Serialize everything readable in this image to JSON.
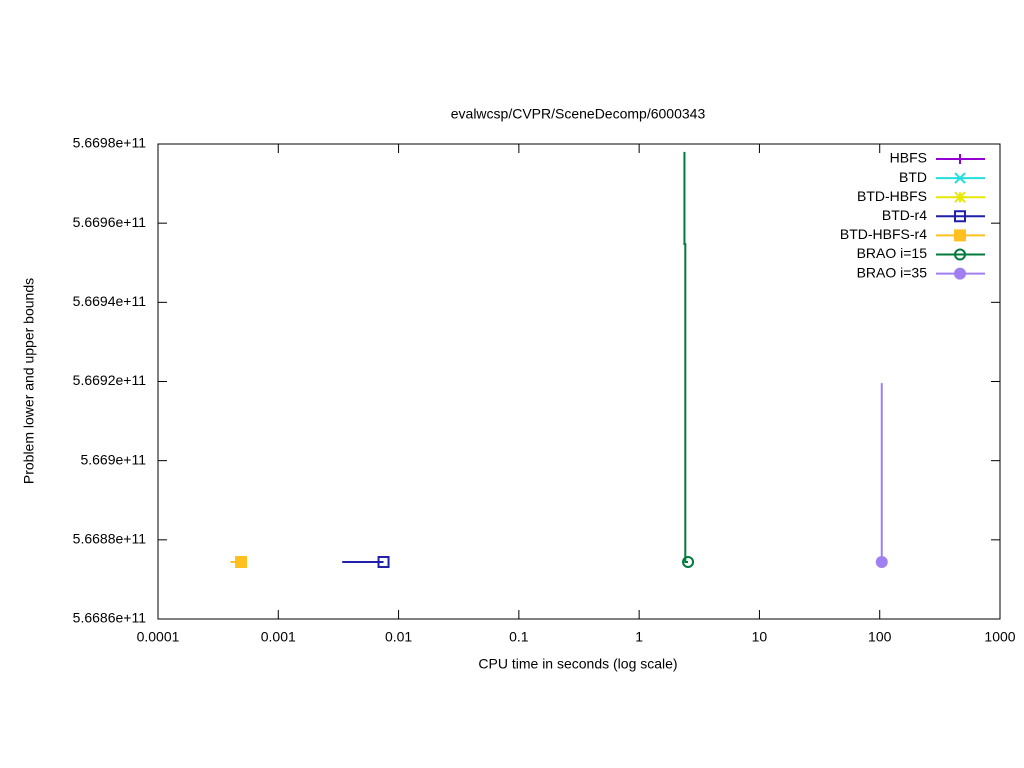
{
  "chart_data": {
    "type": "line",
    "title": "evalwcsp/CVPR/SceneDecomp/6000343",
    "x_label": "CPU time in seconds (log scale)",
    "y_label": "Problem lower and upper bounds",
    "x_scale": "log",
    "xlim": [
      0.0001,
      1000
    ],
    "xticks": [
      0.0001,
      0.001,
      0.01,
      0.1,
      1,
      10,
      100,
      1000
    ],
    "ylim": [
      566860000000,
      566980000000
    ],
    "yticks": [
      {
        "value": 566860000000,
        "label": "5.6686e+11"
      },
      {
        "value": 566880000000,
        "label": "5.6688e+11"
      },
      {
        "value": 566900000000,
        "label": "5.669e+11"
      },
      {
        "value": 566920000000,
        "label": "5.6692e+11"
      },
      {
        "value": 566940000000,
        "label": "5.6694e+11"
      },
      {
        "value": 566960000000,
        "label": "5.6696e+11"
      },
      {
        "value": 566980000000,
        "label": "5.6698e+11"
      }
    ],
    "legend_position": "upper right",
    "series": [
      {
        "name": "HBFS",
        "color": "#9400d3",
        "marker": "plus",
        "x": [],
        "values": []
      },
      {
        "name": "BTD",
        "color": "#22dede",
        "marker": "cross",
        "x": [],
        "values": []
      },
      {
        "name": "BTD-HBFS",
        "color": "#e8e800",
        "marker": "star",
        "x": [],
        "values": []
      },
      {
        "name": "BTD-r4",
        "color": "#2020a8",
        "marker": "open-square",
        "x": [
          0.0034,
          0.0075
        ],
        "values": [
          566874400000,
          566874400000
        ]
      },
      {
        "name": "BTD-HBFS-r4",
        "color": "#ffc020",
        "marker": "filled-square",
        "x": [
          0.0004,
          0.00049
        ],
        "values": [
          566874400000,
          566874400000
        ]
      },
      {
        "name": "BRAO i=15",
        "color": "#007a3d",
        "marker": "open-circle",
        "x": [
          2.38,
          2.38,
          2.42,
          2.42,
          2.55
        ],
        "values": [
          566978000000,
          566954700000,
          566954700000,
          566874400000,
          566874400000
        ]
      },
      {
        "name": "BRAO i=35",
        "color": "#a080f0",
        "marker": "filled-circle",
        "x": [
          104,
          104
        ],
        "values": [
          566919600000,
          566874400000
        ]
      }
    ]
  }
}
